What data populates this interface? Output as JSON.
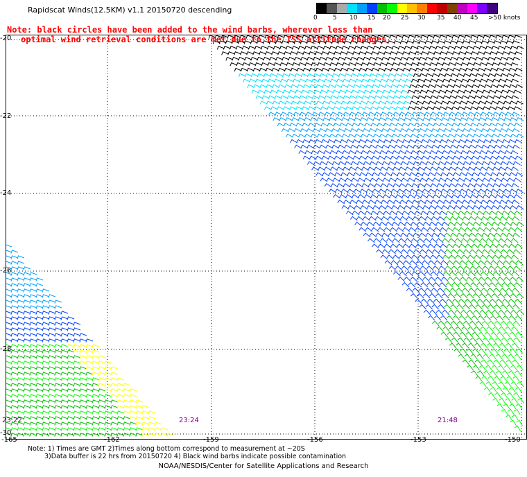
{
  "title": "Rapidscat Winds(12.5KM) v1.1 20150720 descending",
  "notice": {
    "line1": "Note: black circles have been added to the wind barbs, wherever less than",
    "line2": "optimal wind retrieval conditions are met due to the ISS attitude changes."
  },
  "color_scale": {
    "labels": [
      "0",
      "5",
      "10",
      "15",
      "20",
      "25",
      "30",
      "35",
      "40",
      "45",
      ">50 knots"
    ],
    "colors": [
      "#000000",
      "#555555",
      "#aaaaaa",
      "#00e0ff",
      "#00a0ff",
      "#0040ff",
      "#00c000",
      "#00ff00",
      "#ffff00",
      "#ffc000",
      "#ff8000",
      "#ff0000",
      "#c00000",
      "#804000",
      "#c000c0",
      "#ff00ff",
      "#8000ff",
      "#400080"
    ]
  },
  "y_axis": [
    "-20",
    "-22",
    "-24",
    "-26",
    "-28",
    "-30"
  ],
  "x_axis": [
    "-165",
    "-162",
    "-159",
    "-156",
    "-153",
    "-150"
  ],
  "pass_times": [
    "23:22",
    "23:24",
    "21:48"
  ],
  "footer": {
    "line1": "Note: 1) Times are GMT 2)Times along bottom correspond to measurement at ~20S",
    "line2": "3)Data buffer is 22 hrs from 20150720 4) Black wind barbs indicate possible contamination",
    "credit": "NOAA/NESDIS/Center for Satellite Applications and Research"
  },
  "swath_colors": {
    "black": "#000000",
    "cyan": "#00e0ff",
    "lightblue": "#00a0ff",
    "blue": "#0040ff",
    "darkgreen": "#00c000",
    "green": "#00ff00",
    "yellow": "#ffff00"
  }
}
